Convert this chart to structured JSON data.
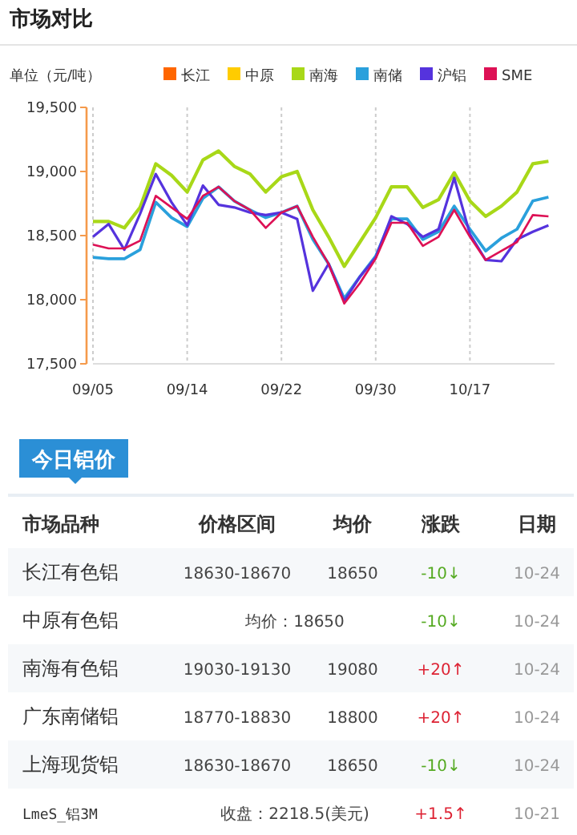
{
  "chart_data": [
    {
      "type": "line",
      "title": "市场对比",
      "ylabel": "单位（元/吨）",
      "categories": [
        "09/05",
        null,
        null,
        null,
        null,
        null,
        "09/14",
        null,
        null,
        null,
        null,
        null,
        "09/22",
        null,
        null,
        null,
        null,
        null,
        "09/30",
        null,
        null,
        null,
        null,
        null,
        "10/17",
        null,
        null,
        null,
        null,
        null
      ],
      "series": [
        {
          "name": "长江",
          "color": "#ff6600",
          "values": [
            null,
            null,
            null,
            null,
            null,
            null,
            null,
            null,
            null,
            null,
            null,
            null,
            null,
            null,
            null,
            null,
            null,
            null,
            null,
            null,
            null,
            null,
            null,
            null,
            null,
            null,
            null,
            null,
            null,
            null
          ]
        },
        {
          "name": "中原",
          "color": "#ffcc00",
          "values": [
            null,
            null,
            null,
            null,
            null,
            null,
            null,
            null,
            null,
            null,
            null,
            null,
            null,
            null,
            null,
            null,
            null,
            null,
            null,
            null,
            null,
            null,
            null,
            null,
            null,
            null,
            null,
            null,
            null,
            null
          ]
        },
        {
          "name": "南海",
          "color": "#a8d818",
          "values": [
            18610,
            18610,
            18560,
            18720,
            19060,
            18970,
            18840,
            19090,
            19160,
            19040,
            18980,
            18840,
            18960,
            19000,
            18700,
            18490,
            18260,
            18450,
            18640,
            18880,
            18880,
            18720,
            18780,
            18990,
            18770,
            18650,
            18730,
            18840,
            19060,
            19080
          ]
        },
        {
          "name": "南储",
          "color": "#2aa0dc",
          "values": [
            18330,
            18320,
            18320,
            18390,
            18760,
            18640,
            18570,
            18790,
            18880,
            18770,
            18700,
            18640,
            18680,
            18730,
            18470,
            18280,
            18010,
            18180,
            18340,
            18630,
            18630,
            18470,
            18530,
            18730,
            18550,
            18380,
            18480,
            18550,
            18770,
            18800
          ]
        },
        {
          "name": "沪铝",
          "color": "#5533dd",
          "values": [
            18490,
            18590,
            18390,
            18670,
            18980,
            18760,
            18580,
            18890,
            18740,
            18720,
            18680,
            18660,
            18680,
            18630,
            18070,
            18280,
            17990,
            18180,
            18330,
            18650,
            18590,
            18490,
            18550,
            18950,
            18510,
            18310,
            18300,
            18470,
            18530,
            18580
          ]
        },
        {
          "name": "SME",
          "color": "#dd1155",
          "values": [
            18430,
            18400,
            18400,
            18460,
            18810,
            18720,
            18630,
            18810,
            18880,
            18770,
            18700,
            18560,
            18680,
            18730,
            18490,
            18280,
            17970,
            18130,
            18320,
            18600,
            18600,
            18420,
            18490,
            18700,
            18490,
            18310,
            18380,
            18450,
            18660,
            18650
          ]
        }
      ],
      "ylim": [
        17500,
        19500
      ],
      "yticks": [
        {
          "value": 17500,
          "label": "17,500"
        },
        {
          "value": 18000,
          "label": "18,000"
        },
        {
          "value": 18500,
          "label": "18,500"
        },
        {
          "value": 19000,
          "label": "19,000"
        },
        {
          "value": 19500,
          "label": "19,500"
        }
      ],
      "grid": "x",
      "legend": "top right"
    },
    {
      "type": "other",
      "title": "今日铝价",
      "categories": [
        "市场品种",
        "价格区间",
        "均价",
        "涨跌",
        "日期"
      ],
      "y_categories": [
        "长江有色铝",
        "中原有色铝",
        "南海有色铝",
        "广东南储铝",
        "上海现货铝",
        "LmeS_铝3M"
      ],
      "cell_labels": [
        [
          "18630-18670",
          "18650",
          "-10↓",
          "10-24"
        ],
        [
          "均价：18650",
          null,
          "-10↓",
          "10-24"
        ],
        [
          "19030-19130",
          "19080",
          "+20↑",
          "10-24"
        ],
        [
          "18770-18830",
          "18800",
          "+20↑",
          "10-24"
        ],
        [
          "18630-18670",
          "18650",
          "-10↓",
          "10-24"
        ],
        [
          "收盘：2218.5(美元)",
          null,
          "+1.5↑",
          "10-21"
        ]
      ]
    }
  ]
}
